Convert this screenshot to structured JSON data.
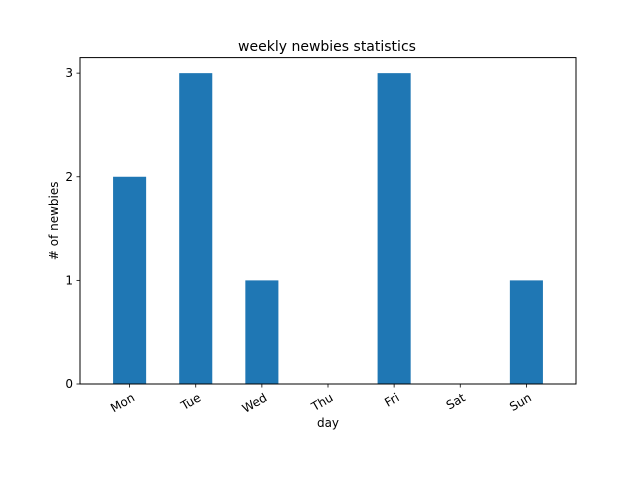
{
  "chart_data": {
    "type": "bar",
    "title": "weekly newbies statistics",
    "xlabel": "day",
    "ylabel": "# of newbies",
    "categories": [
      "Mon",
      "Tue",
      "Wed",
      "Thu",
      "Fri",
      "Sat",
      "Sun"
    ],
    "values": [
      2,
      3,
      1,
      0,
      3,
      0,
      1
    ],
    "ylim": [
      0,
      3.15
    ],
    "yticks": [
      "0",
      "1",
      "2",
      "3"
    ],
    "grid": false,
    "bar_color": "#1f77b4"
  }
}
